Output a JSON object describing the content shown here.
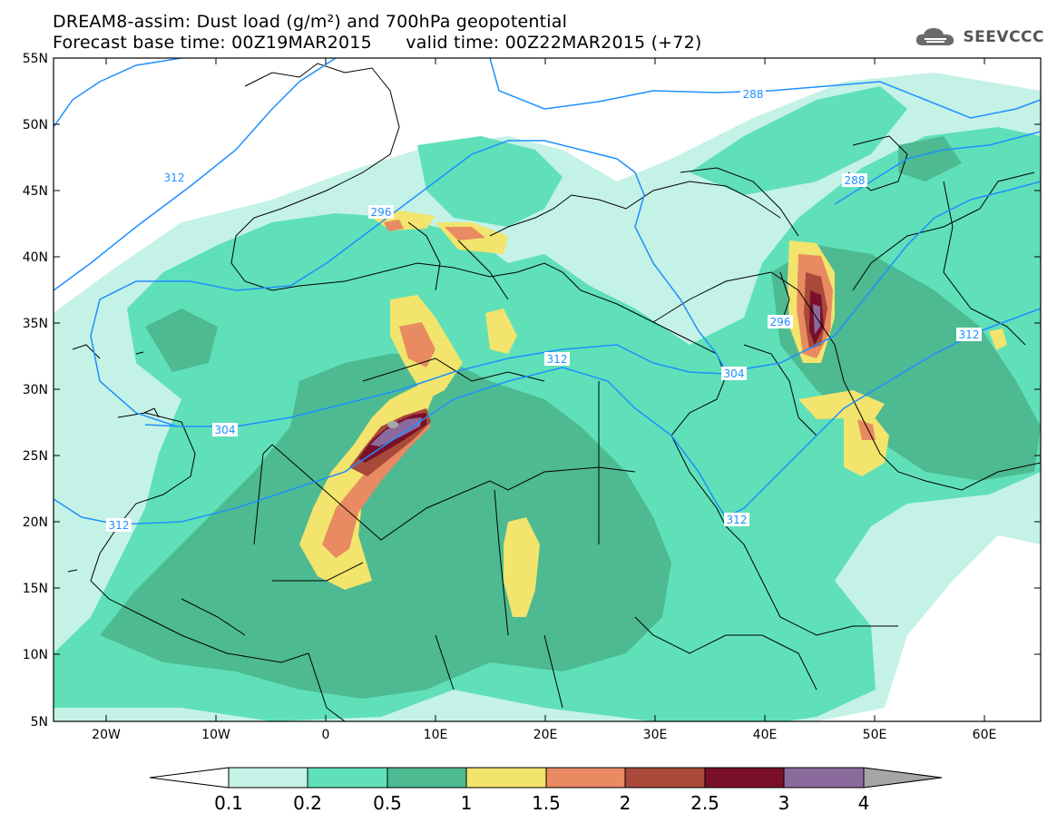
{
  "header": {
    "title_line1": "DREAM8-assim: Dust load (g/m²) and 700hPa geopotential",
    "base_label": "Forecast base time: 00Z19MAR2015",
    "valid_label": "valid time: 00Z22MAR2015 (+72)"
  },
  "logo": {
    "text": "SEEVCCC",
    "icon": "cloud-icon"
  },
  "axes": {
    "lat_labels": [
      "55N",
      "50N",
      "45N",
      "40N",
      "35N",
      "30N",
      "25N",
      "20N",
      "15N",
      "10N",
      "5N"
    ],
    "lon_labels": [
      "20W",
      "10W",
      "0",
      "10E",
      "20E",
      "30E",
      "40E",
      "50E",
      "60E"
    ]
  },
  "contour_labels": [
    "288",
    "288",
    "296",
    "296",
    "304",
    "304",
    "312",
    "312",
    "312",
    "312",
    "312"
  ],
  "colorbar": {
    "labels": [
      "0.1",
      "0.2",
      "0.5",
      "1",
      "1.5",
      "2",
      "2.5",
      "3",
      "4"
    ],
    "colors": [
      "#c4f2e6",
      "#5fe0b8",
      "#4dba91",
      "#f2e46c",
      "#e88a62",
      "#a8493a",
      "#7a0f2a",
      "#8b6a9d",
      "#a6a6a6"
    ]
  },
  "colors": {
    "light": "#c4f2e6",
    "green": "#5fe0b8",
    "dark_green": "#4dba91",
    "yellow": "#f2e46c",
    "orange": "#e88a62",
    "brown": "#a8493a",
    "maroon": "#7a0f2a",
    "purple": "#8b6a9d",
    "grey": "#a6a6a6",
    "contour": "#1e90ff"
  }
}
